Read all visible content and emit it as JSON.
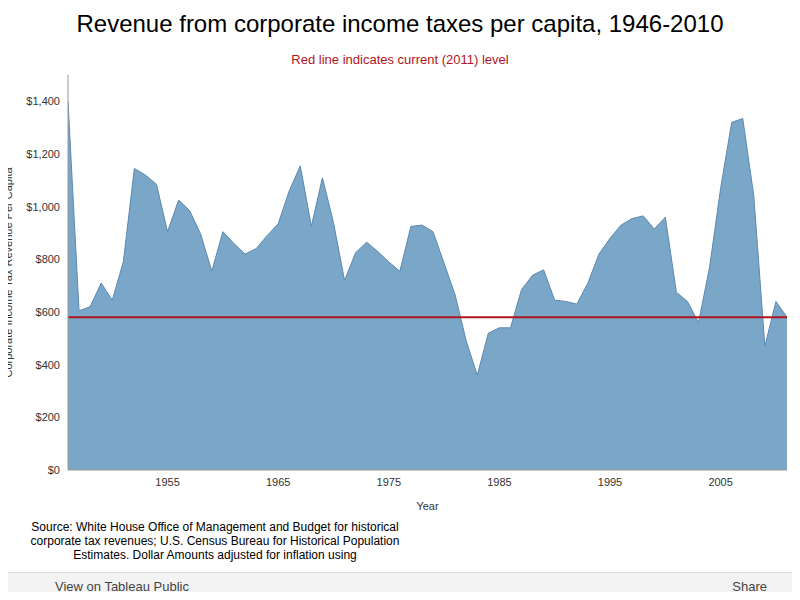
{
  "chart_data": {
    "type": "area",
    "title": "Revenue from corporate income taxes per capita, 1946-2010",
    "subtitle": "Red line indicates current (2011) level",
    "x_label": "Year",
    "y_label": "Corporate Income Tax Revenue Per Capita",
    "x": [
      1946,
      1947,
      1948,
      1949,
      1950,
      1951,
      1952,
      1953,
      1954,
      1955,
      1956,
      1957,
      1958,
      1959,
      1960,
      1961,
      1962,
      1963,
      1964,
      1965,
      1966,
      1967,
      1968,
      1969,
      1970,
      1971,
      1972,
      1973,
      1974,
      1975,
      1976,
      1977,
      1978,
      1979,
      1980,
      1981,
      1982,
      1983,
      1984,
      1985,
      1986,
      1987,
      1988,
      1989,
      1990,
      1991,
      1992,
      1993,
      1994,
      1995,
      1996,
      1997,
      1998,
      1999,
      2000,
      2001,
      2002,
      2003,
      2004,
      2005,
      2006,
      2007,
      2008,
      2009,
      2010,
      2011
    ],
    "values": [
      1400,
      605,
      620,
      710,
      645,
      790,
      1145,
      1120,
      1085,
      905,
      1025,
      985,
      895,
      755,
      905,
      860,
      820,
      840,
      890,
      935,
      1060,
      1155,
      925,
      1110,
      940,
      720,
      825,
      865,
      830,
      790,
      755,
      925,
      930,
      905,
      785,
      665,
      490,
      360,
      520,
      540,
      540,
      685,
      740,
      760,
      645,
      640,
      630,
      710,
      820,
      880,
      930,
      955,
      965,
      915,
      960,
      675,
      640,
      560,
      770,
      1070,
      1320,
      1335,
      1040,
      470,
      640,
      580
    ],
    "color": "#7aa6c8",
    "reference_line": {
      "value": 580,
      "color": "#b0141e"
    },
    "xlim": [
      1946,
      2011
    ],
    "xticks": [
      1955,
      1965,
      1975,
      1985,
      1995,
      2005
    ],
    "ylim": [
      0,
      1500
    ],
    "yticks": [
      {
        "value": 0,
        "label": "$0"
      },
      {
        "value": 200,
        "label": "$200"
      },
      {
        "value": 400,
        "label": "$400"
      },
      {
        "value": 600,
        "label": "$600"
      },
      {
        "value": 800,
        "label": "$800"
      },
      {
        "value": 1000,
        "label": "$1,000"
      },
      {
        "value": 1200,
        "label": "$1,200"
      },
      {
        "value": 1400,
        "label": "$1,400"
      }
    ],
    "grid": false,
    "source": "Source: White House Office of Management and Budget for historical corporate tax revenues; U.S. Census Bureau for Historical Population Estimates. Dollar Amounts adjusted for inflation using",
    "footer_link": "View on Tableau Public",
    "footer_share": "Share"
  }
}
